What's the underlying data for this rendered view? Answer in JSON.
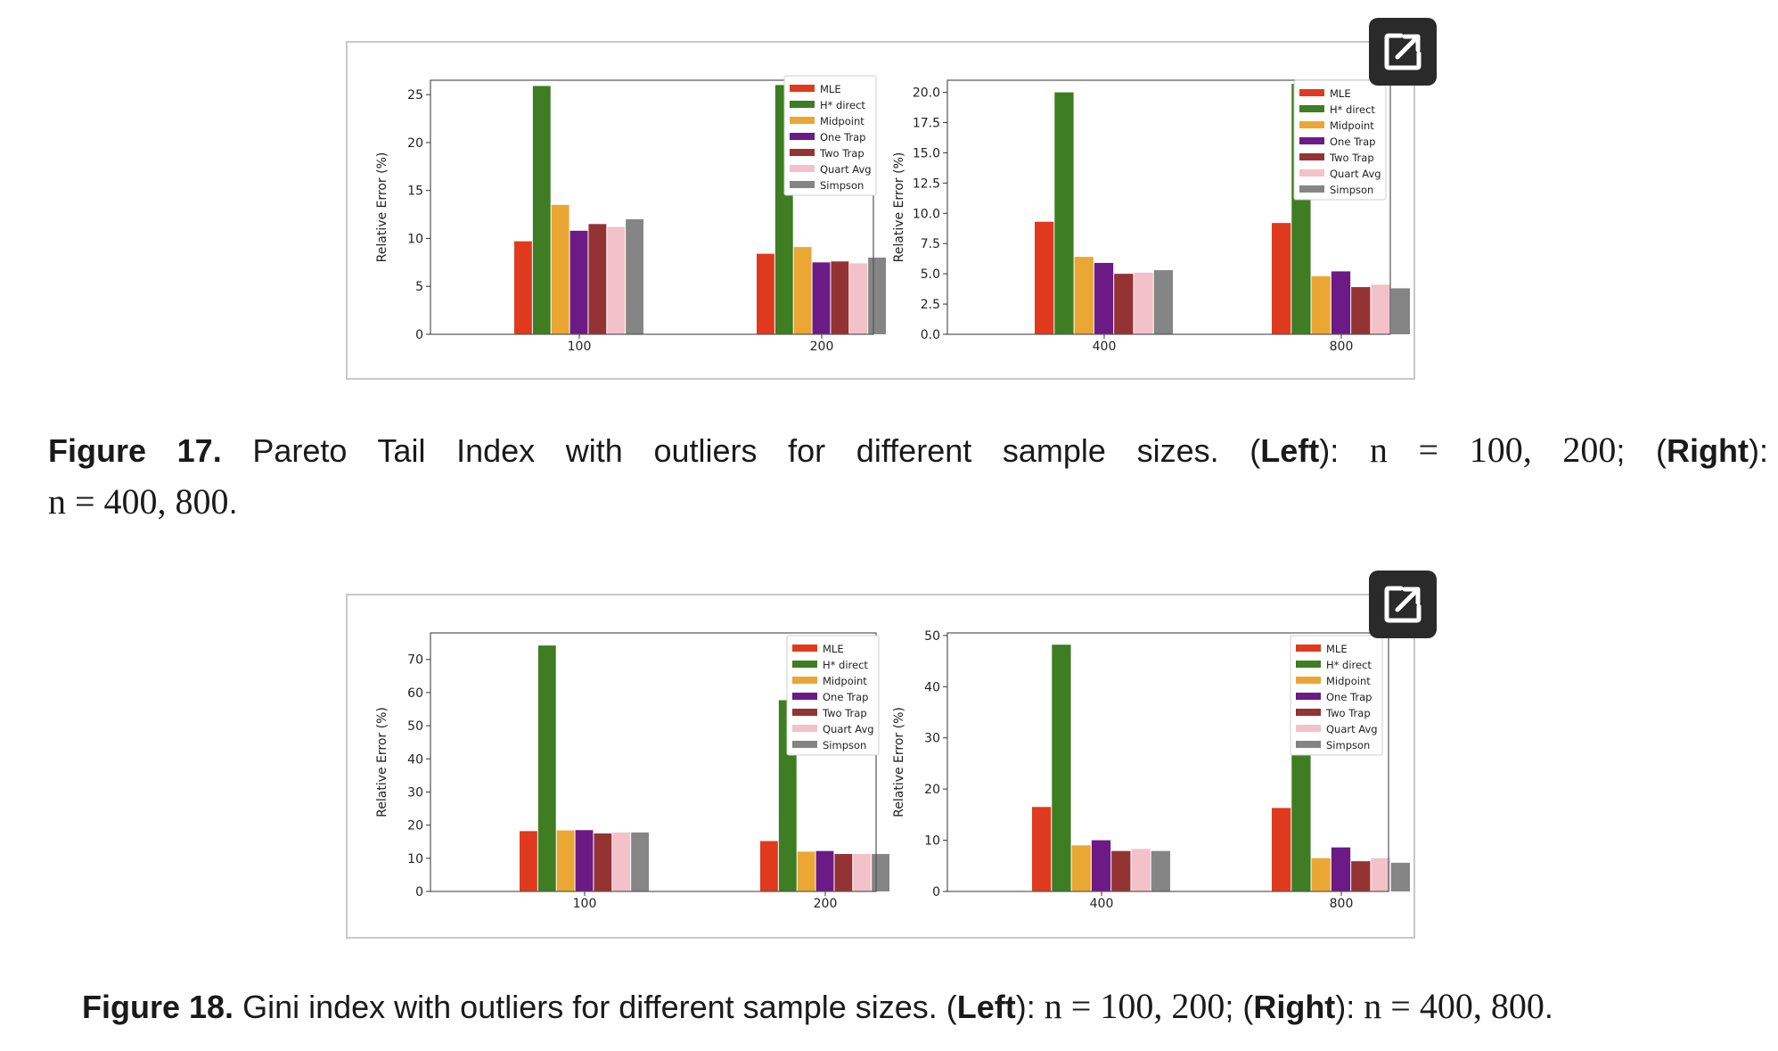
{
  "figures": [
    {
      "id": "fig17",
      "caption": {
        "label": "Figure 17.",
        "text": "Pareto Tail Index with outliers for different sample sizes.",
        "left_label": "Left",
        "left_math": "n = 100, 200",
        "right_label": "Right",
        "right_math": "n = 400, 800"
      }
    },
    {
      "id": "fig18",
      "caption": {
        "label": "Figure 18.",
        "text": "Gini index with outliers for different sample sizes.",
        "left_label": "Left",
        "left_math": "n = 100, 200",
        "right_label": "Right",
        "right_math": "n = 400, 800"
      }
    }
  ],
  "colors": {
    "MLE": "#e03a1e",
    "H* direct": "#3e7d22",
    "Midpoint": "#eaa733",
    "One Trap": "#6b1a86",
    "Two Trap": "#943333",
    "Quart Avg": "#f2c1ca",
    "Simpson": "#858585"
  },
  "icons": {
    "external": "external-link-icon"
  },
  "chart_data": [
    {
      "id": "fig17-left",
      "type": "bar",
      "ylabel": "Relative Error (%)",
      "xlabel": "",
      "categories": [
        "100",
        "200"
      ],
      "ylim": [
        0,
        26.5
      ],
      "yticks": [
        0,
        5,
        10,
        15,
        20,
        25
      ],
      "ytick_labels": [
        "0",
        "5",
        "10",
        "15",
        "20",
        "25"
      ],
      "legend": "top-right",
      "series": [
        {
          "name": "MLE",
          "values": [
            9.7,
            8.4
          ]
        },
        {
          "name": "H* direct",
          "values": [
            25.9,
            26.0
          ]
        },
        {
          "name": "Midpoint",
          "values": [
            13.5,
            9.1
          ]
        },
        {
          "name": "One Trap",
          "values": [
            10.8,
            7.5
          ]
        },
        {
          "name": "Two Trap",
          "values": [
            11.5,
            7.6
          ]
        },
        {
          "name": "Quart Avg",
          "values": [
            11.2,
            7.4
          ]
        },
        {
          "name": "Simpson",
          "values": [
            12.0,
            8.0
          ]
        }
      ]
    },
    {
      "id": "fig17-right",
      "type": "bar",
      "ylabel": "Relative Error (%)",
      "xlabel": "",
      "categories": [
        "400",
        "800"
      ],
      "ylim": [
        0,
        21.0
      ],
      "yticks": [
        0,
        2.5,
        5,
        7.5,
        10,
        12.5,
        15,
        17.5,
        20
      ],
      "ytick_labels": [
        "0.0",
        "2.5",
        "5.0",
        "7.5",
        "10.0",
        "12.5",
        "15.0",
        "17.5",
        "20.0"
      ],
      "legend": "top-right",
      "series": [
        {
          "name": "MLE",
          "values": [
            9.3,
            9.2
          ]
        },
        {
          "name": "H* direct",
          "values": [
            20.0,
            20.7
          ]
        },
        {
          "name": "Midpoint",
          "values": [
            6.4,
            4.8
          ]
        },
        {
          "name": "One Trap",
          "values": [
            5.9,
            5.2
          ]
        },
        {
          "name": "Two Trap",
          "values": [
            5.0,
            3.9
          ]
        },
        {
          "name": "Quart Avg",
          "values": [
            5.1,
            4.1
          ]
        },
        {
          "name": "Simpson",
          "values": [
            5.3,
            3.8
          ]
        }
      ]
    },
    {
      "id": "fig18-left",
      "type": "bar",
      "ylabel": "Relative Error (%)",
      "xlabel": "",
      "categories": [
        "100",
        "200"
      ],
      "ylim": [
        0,
        78
      ],
      "yticks": [
        0,
        10,
        20,
        30,
        40,
        50,
        60,
        70
      ],
      "ytick_labels": [
        "0",
        "10",
        "20",
        "30",
        "40",
        "50",
        "60",
        "70"
      ],
      "legend": "top-right",
      "series": [
        {
          "name": "MLE",
          "values": [
            18.2,
            15.2
          ]
        },
        {
          "name": "H* direct",
          "values": [
            74.2,
            57.7
          ]
        },
        {
          "name": "Midpoint",
          "values": [
            18.4,
            12.0
          ]
        },
        {
          "name": "One Trap",
          "values": [
            18.5,
            12.2
          ]
        },
        {
          "name": "Two Trap",
          "values": [
            17.5,
            11.3
          ]
        },
        {
          "name": "Quart Avg",
          "values": [
            17.8,
            11.3
          ]
        },
        {
          "name": "Simpson",
          "values": [
            17.8,
            11.3
          ]
        }
      ]
    },
    {
      "id": "fig18-right",
      "type": "bar",
      "ylabel": "Relative Error (%)",
      "xlabel": "",
      "categories": [
        "400",
        "800"
      ],
      "ylim": [
        0,
        50.5
      ],
      "yticks": [
        0,
        10,
        20,
        30,
        40,
        50
      ],
      "ytick_labels": [
        "0",
        "10",
        "20",
        "30",
        "40",
        "50"
      ],
      "legend": "top-right",
      "series": [
        {
          "name": "MLE",
          "values": [
            16.5,
            16.3
          ]
        },
        {
          "name": "H* direct",
          "values": [
            48.2,
            49.5
          ]
        },
        {
          "name": "Midpoint",
          "values": [
            9.0,
            6.5
          ]
        },
        {
          "name": "One Trap",
          "values": [
            10.0,
            8.6
          ]
        },
        {
          "name": "Two Trap",
          "values": [
            7.9,
            5.9
          ]
        },
        {
          "name": "Quart Avg",
          "values": [
            8.3,
            6.5
          ]
        },
        {
          "name": "Simpson",
          "values": [
            7.9,
            5.6
          ]
        }
      ]
    }
  ]
}
